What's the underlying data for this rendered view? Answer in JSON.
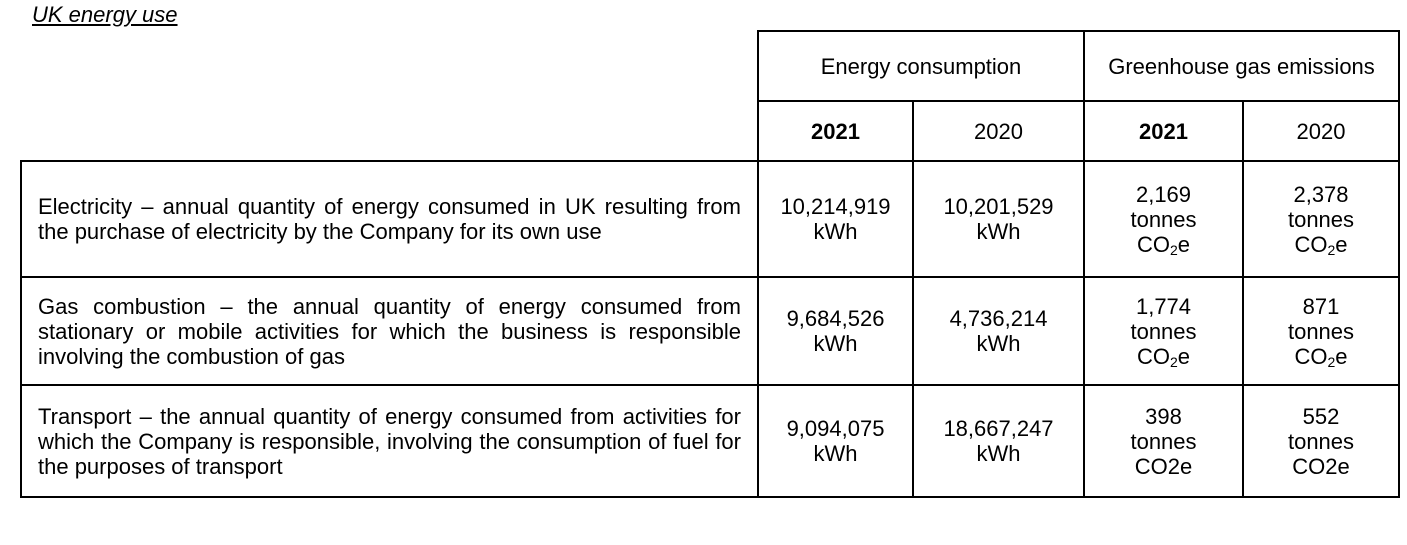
{
  "title": "UK energy use",
  "header": {
    "group_energy": "Energy consumption",
    "group_ghg": "Greenhouse gas emissions",
    "years": [
      "2021",
      "2020",
      "2021",
      "2020"
    ]
  },
  "rows": [
    {
      "desc": "Electricity – annual quantity of energy consumed in UK resulting from the purchase of electricity by the Company for its own use",
      "energy_2021": [
        "10,214,919",
        "kWh"
      ],
      "energy_2020": [
        "10,201,529",
        "kWh"
      ],
      "ghg_2021": [
        "2,169",
        "tonnes",
        "CO",
        "2",
        "e"
      ],
      "ghg_2020": [
        "2,378",
        "tonnes",
        "CO",
        "2",
        "e"
      ]
    },
    {
      "desc": "Gas combustion – the annual quantity of energy consumed from stationary or mobile activities for which the business is responsible involving the combustion of gas",
      "energy_2021": [
        "9,684,526",
        "kWh"
      ],
      "energy_2020": [
        "4,736,214",
        "kWh"
      ],
      "ghg_2021": [
        "1,774",
        "tonnes",
        "CO",
        "2",
        "e"
      ],
      "ghg_2020": [
        "871",
        "tonnes",
        "CO",
        "2",
        "e"
      ]
    },
    {
      "desc": "Transport – the annual quantity of energy consumed from activities for which the Company is responsible, involving the consumption of fuel for the purposes of transport",
      "energy_2021": [
        "9,094,075",
        "kWh"
      ],
      "energy_2020": [
        "18,667,247",
        "kWh"
      ],
      "ghg_2021": [
        "398",
        "tonnes",
        "CO2e"
      ],
      "ghg_2020": [
        "552",
        "tonnes",
        "CO2e"
      ]
    }
  ]
}
